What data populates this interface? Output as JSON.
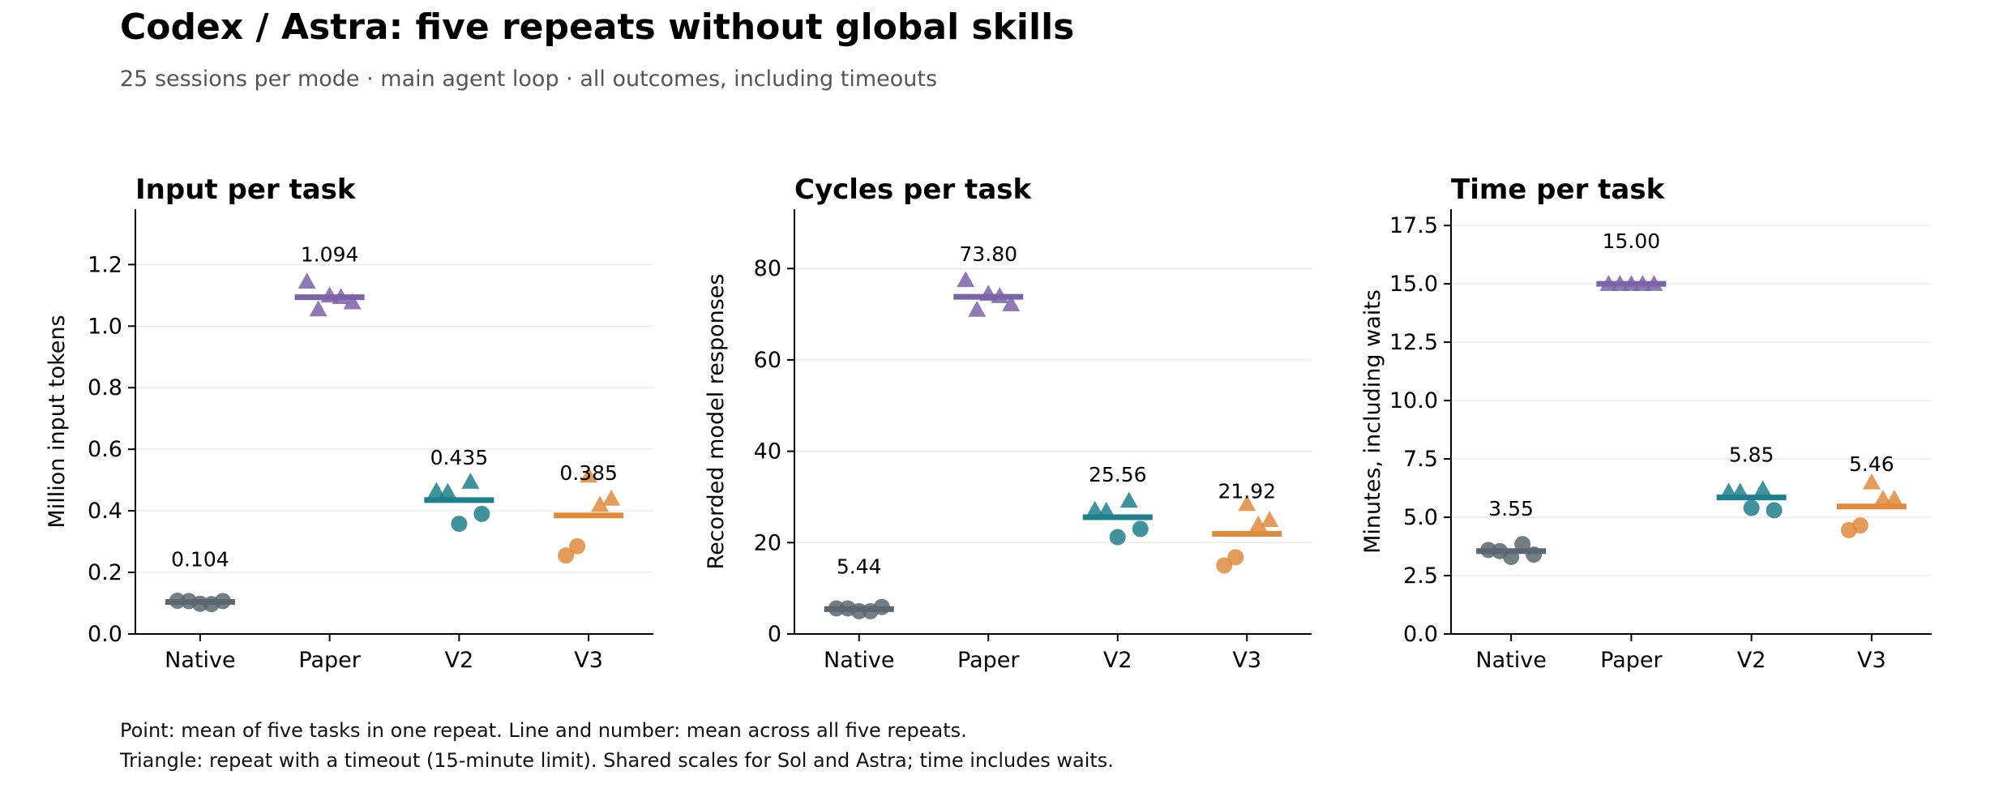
{
  "title": "Codex / Astra: five repeats without global skills",
  "subtitle": "25 sessions per mode · main agent loop · all outcomes, including timeouts",
  "footnotes": [
    "Point: mean of five tasks in one repeat. Line and number: mean across all five repeats.",
    "Triangle: repeat with a timeout (15-minute limit). Shared scales for Sol and Astra; time includes waits."
  ],
  "colors": {
    "Native": "#5b6770",
    "Paper": "#7b63a8",
    "V2": "#1f7f8c",
    "V3": "#e08a3c"
  },
  "chart_data": [
    {
      "type": "scatter",
      "title": "Input per task",
      "xlabel": "",
      "ylabel": "Million input tokens",
      "categories": [
        "Native",
        "Paper",
        "V2",
        "V3"
      ],
      "ylim": [
        0,
        1.38
      ],
      "yticks": [
        "0.0",
        "0.2",
        "0.4",
        "0.6",
        "0.8",
        "1.0",
        "1.2"
      ],
      "grid": true,
      "marker_legend": "circle = repeat without timeout, triangle = repeat with a timeout",
      "series": [
        {
          "category": "Native",
          "mean": 0.104,
          "mean_label": "0.104",
          "points": [
            {
              "value": 0.108,
              "timeout": false
            },
            {
              "value": 0.107,
              "timeout": false
            },
            {
              "value": 0.098,
              "timeout": false
            },
            {
              "value": 0.097,
              "timeout": false
            },
            {
              "value": 0.107,
              "timeout": false
            }
          ]
        },
        {
          "category": "Paper",
          "mean": 1.094,
          "mean_label": "1.094",
          "points": [
            {
              "value": 1.145,
              "timeout": true
            },
            {
              "value": 1.055,
              "timeout": true
            },
            {
              "value": 1.1,
              "timeout": true
            },
            {
              "value": 1.095,
              "timeout": true
            },
            {
              "value": 1.078,
              "timeout": true
            }
          ]
        },
        {
          "category": "V2",
          "mean": 0.435,
          "mean_label": "0.435",
          "points": [
            {
              "value": 0.465,
              "timeout": true
            },
            {
              "value": 0.462,
              "timeout": true
            },
            {
              "value": 0.358,
              "timeout": false
            },
            {
              "value": 0.495,
              "timeout": true
            },
            {
              "value": 0.39,
              "timeout": false
            }
          ]
        },
        {
          "category": "V3",
          "mean": 0.385,
          "mean_label": "0.385",
          "points": [
            {
              "value": 0.255,
              "timeout": false
            },
            {
              "value": 0.285,
              "timeout": false
            },
            {
              "value": 0.515,
              "timeout": true
            },
            {
              "value": 0.42,
              "timeout": true
            },
            {
              "value": 0.44,
              "timeout": true
            }
          ]
        }
      ]
    },
    {
      "type": "scatter",
      "title": "Cycles per task",
      "xlabel": "",
      "ylabel": "Recorded model responses",
      "categories": [
        "Native",
        "Paper",
        "V2",
        "V3"
      ],
      "ylim": [
        0,
        93
      ],
      "yticks": [
        "0",
        "20",
        "40",
        "60",
        "80"
      ],
      "grid": true,
      "series": [
        {
          "category": "Native",
          "mean": 5.44,
          "mean_label": "5.44",
          "points": [
            {
              "value": 5.6,
              "timeout": false
            },
            {
              "value": 5.6,
              "timeout": false
            },
            {
              "value": 5.0,
              "timeout": false
            },
            {
              "value": 5.0,
              "timeout": false
            },
            {
              "value": 5.9,
              "timeout": false
            }
          ]
        },
        {
          "category": "Paper",
          "mean": 73.8,
          "mean_label": "73.80",
          "points": [
            {
              "value": 77.5,
              "timeout": true
            },
            {
              "value": 71.0,
              "timeout": true
            },
            {
              "value": 74.5,
              "timeout": true
            },
            {
              "value": 74.0,
              "timeout": true
            },
            {
              "value": 72.2,
              "timeout": true
            }
          ]
        },
        {
          "category": "V2",
          "mean": 25.56,
          "mean_label": "25.56",
          "points": [
            {
              "value": 27.2,
              "timeout": true
            },
            {
              "value": 27.0,
              "timeout": true
            },
            {
              "value": 21.2,
              "timeout": false
            },
            {
              "value": 29.2,
              "timeout": true
            },
            {
              "value": 23.0,
              "timeout": false
            }
          ]
        },
        {
          "category": "V3",
          "mean": 21.92,
          "mean_label": "21.92",
          "points": [
            {
              "value": 15.0,
              "timeout": false
            },
            {
              "value": 16.8,
              "timeout": false
            },
            {
              "value": 28.5,
              "timeout": true
            },
            {
              "value": 24.0,
              "timeout": true
            },
            {
              "value": 25.0,
              "timeout": true
            }
          ]
        }
      ]
    },
    {
      "type": "scatter",
      "title": "Time per task",
      "xlabel": "",
      "ylabel": "Minutes, including waits",
      "categories": [
        "Native",
        "Paper",
        "V2",
        "V3"
      ],
      "ylim": [
        0,
        18.2
      ],
      "yticks": [
        "0.0",
        "2.5",
        "5.0",
        "7.5",
        "10.0",
        "12.5",
        "15.0",
        "17.5"
      ],
      "grid": true,
      "series": [
        {
          "category": "Native",
          "mean": 3.55,
          "mean_label": "3.55",
          "points": [
            {
              "value": 3.6,
              "timeout": false
            },
            {
              "value": 3.55,
              "timeout": false
            },
            {
              "value": 3.3,
              "timeout": false
            },
            {
              "value": 3.85,
              "timeout": false
            },
            {
              "value": 3.4,
              "timeout": false
            }
          ]
        },
        {
          "category": "Paper",
          "mean": 15.0,
          "mean_label": "15.00",
          "points": [
            {
              "value": 15.0,
              "timeout": true
            },
            {
              "value": 15.0,
              "timeout": true
            },
            {
              "value": 15.0,
              "timeout": true
            },
            {
              "value": 15.0,
              "timeout": true
            },
            {
              "value": 15.0,
              "timeout": true
            }
          ]
        },
        {
          "category": "V2",
          "mean": 5.85,
          "mean_label": "5.85",
          "points": [
            {
              "value": 6.1,
              "timeout": true
            },
            {
              "value": 6.1,
              "timeout": true
            },
            {
              "value": 5.4,
              "timeout": false
            },
            {
              "value": 6.2,
              "timeout": true
            },
            {
              "value": 5.3,
              "timeout": false
            }
          ]
        },
        {
          "category": "V3",
          "mean": 5.46,
          "mean_label": "5.46",
          "points": [
            {
              "value": 4.45,
              "timeout": false
            },
            {
              "value": 4.65,
              "timeout": false
            },
            {
              "value": 6.5,
              "timeout": true
            },
            {
              "value": 5.8,
              "timeout": true
            },
            {
              "value": 5.8,
              "timeout": true
            }
          ]
        }
      ]
    }
  ]
}
